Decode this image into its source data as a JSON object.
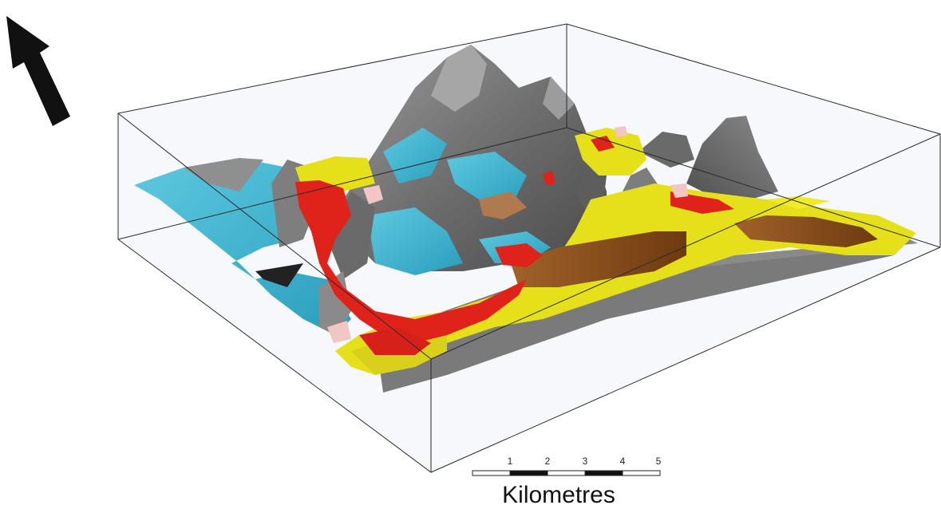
{
  "scale_bar": {
    "ticks": [
      "1",
      "2",
      "3",
      "4",
      "5"
    ],
    "unit": "Kilometres",
    "fill_colors": [
      "#ffffff",
      "#111111"
    ]
  },
  "north_arrow": {
    "color": "#111111",
    "icon": "north-arrow-icon"
  },
  "colors": {
    "topography": "#7b7b7b",
    "unit_cyan": "#3cb6d3",
    "unit_yellow": "#e6e01a",
    "unit_red": "#e0231a",
    "unit_brown": "#8c4e16",
    "unit_pink": "#f2c6c2",
    "base_surface": "#7a7a7a",
    "box_outline": "#2a2a2a",
    "box_fill": "#eef3f7"
  }
}
